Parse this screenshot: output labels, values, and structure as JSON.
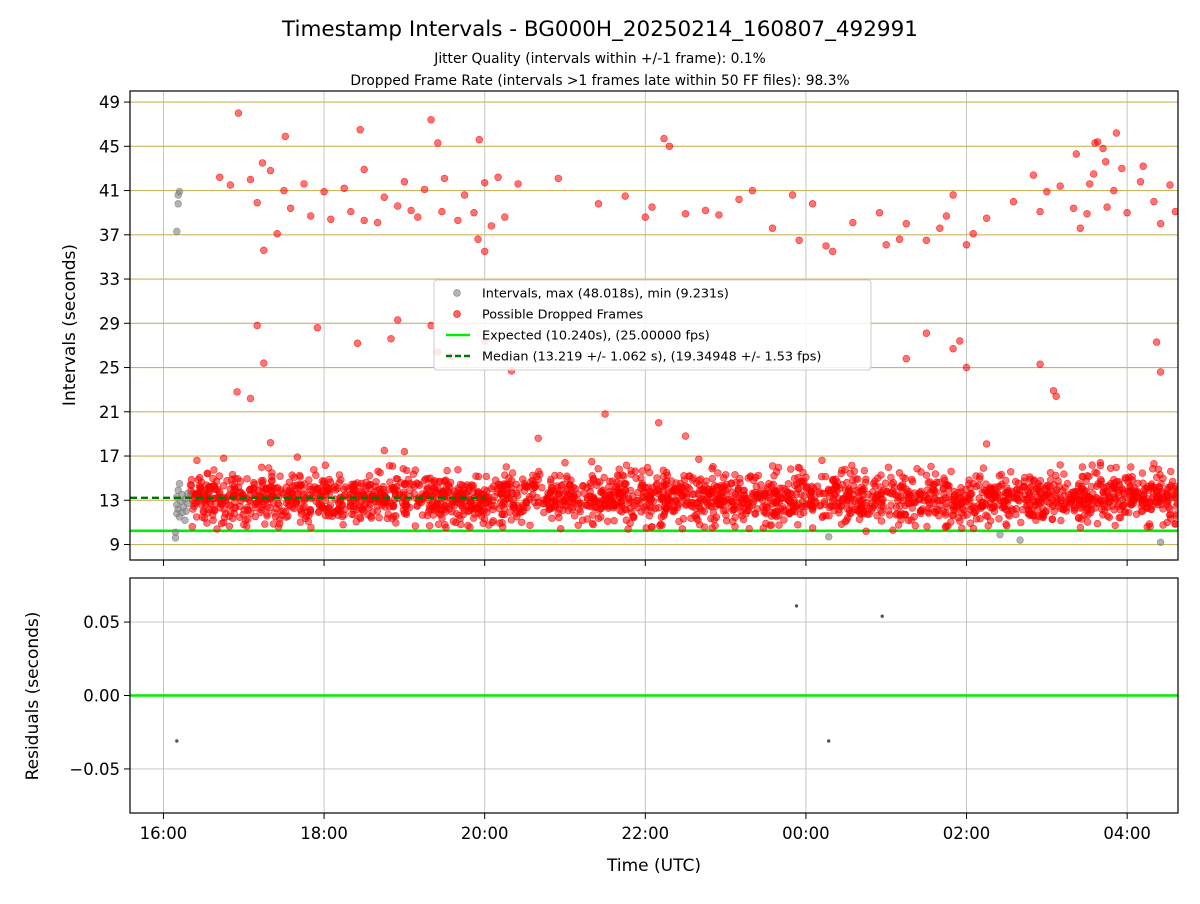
{
  "figure": {
    "title": "Timestamp Intervals - BG000H_20250214_160807_492991",
    "subtitle_1": "Jitter Quality (intervals within +/-1 frame): 0.1%",
    "subtitle_2": "Dropped Frame Rate (intervals >1 frames late within 50 FF files): 98.3%"
  },
  "colors": {
    "background": "#ffffff",
    "axes": "#000000",
    "grid": "#b0b0b0",
    "hgrid_top": "#c8b560",
    "intervals": "#808080",
    "dropped": "#ff0000",
    "expected": "#00ee00",
    "median": "#007700"
  },
  "chart_data": [
    {
      "type": "scatter",
      "panel": "intervals",
      "ylabel": "Intervals (seconds)",
      "xlabel": "",
      "xlim": [
        "15:35",
        "04:38"
      ],
      "ylim": [
        7.6,
        50.0
      ],
      "x_ticks": [
        "16:00",
        "18:00",
        "20:00",
        "22:00",
        "00:00",
        "02:00",
        "04:00"
      ],
      "y_ticks": [
        "9",
        "13",
        "17",
        "21",
        "25",
        "29",
        "33",
        "37",
        "41",
        "45",
        "49"
      ],
      "legend_position": "center",
      "legend": [
        {
          "label": "Intervals, max (48.018s), min (9.231s)",
          "kind": "marker",
          "color": "#808080"
        },
        {
          "label": "Possible Dropped Frames",
          "kind": "marker",
          "color": "#ff0000"
        },
        {
          "label": "Expected (10.240s), (25.00000 fps)",
          "kind": "line",
          "color": "#00ee00"
        },
        {
          "label": "Median (13.219 +/- 1.062 s), (19.34948 +/- 1.53 fps)",
          "kind": "dashed",
          "color": "#007700"
        }
      ],
      "expected": 10.24,
      "median": 13.219,
      "median_x_end": "20:00",
      "series": [
        {
          "name": "Intervals, max (48.018s), min (9.231s)",
          "points": [
            [
              "16:09",
              9.6
            ],
            [
              "16:09",
              10.1
            ],
            [
              "16:10",
              11.8
            ],
            [
              "16:10",
              12.6
            ],
            [
              "16:10",
              13.3
            ],
            [
              "16:11",
              13.9
            ],
            [
              "16:11",
              12.2
            ],
            [
              "16:12",
              14.5
            ],
            [
              "16:12",
              11.5
            ],
            [
              "16:13",
              12.9
            ],
            [
              "16:14",
              13.5
            ],
            [
              "16:14",
              11.9
            ],
            [
              "16:15",
              12.4
            ],
            [
              "16:16",
              13.1
            ],
            [
              "16:16",
              11.2
            ],
            [
              "16:17",
              12.0
            ],
            [
              "16:18",
              13.6
            ],
            [
              "16:18",
              12.7
            ],
            [
              "16:11",
              40.6
            ],
            [
              "16:12",
              40.9
            ],
            [
              "16:11",
              39.8
            ],
            [
              "16:10",
              37.3
            ],
            [
              "00:17",
              9.7
            ],
            [
              "02:25",
              9.9
            ],
            [
              "02:40",
              9.4
            ],
            [
              "04:25",
              9.2
            ]
          ]
        },
        {
          "name": "Possible Dropped Frames",
          "points": [
            [
              "16:56",
              48.0
            ],
            [
              "18:27",
              46.5
            ],
            [
              "17:31",
              45.9
            ],
            [
              "19:20",
              47.4
            ],
            [
              "19:25",
              45.3
            ],
            [
              "19:56",
              45.6
            ],
            [
              "22:14",
              45.7
            ],
            [
              "22:18",
              45.0
            ],
            [
              "03:36",
              45.3
            ],
            [
              "03:38",
              45.4
            ],
            [
              "03:52",
              46.2
            ],
            [
              "03:42",
              44.8
            ],
            [
              "03:22",
              44.3
            ],
            [
              "03:44",
              43.6
            ],
            [
              "03:56",
              43.0
            ],
            [
              "04:12",
              43.2
            ],
            [
              "03:32",
              41.6
            ],
            [
              "03:35",
              42.5
            ],
            [
              "17:14",
              43.5
            ],
            [
              "17:20",
              42.8
            ],
            [
              "17:05",
              42.0
            ],
            [
              "16:50",
              41.5
            ],
            [
              "16:42",
              42.2
            ],
            [
              "17:30",
              41.0
            ],
            [
              "17:45",
              41.6
            ],
            [
              "18:00",
              40.9
            ],
            [
              "18:15",
              41.2
            ],
            [
              "18:30",
              42.9
            ],
            [
              "18:45",
              40.4
            ],
            [
              "19:00",
              41.8
            ],
            [
              "19:15",
              41.1
            ],
            [
              "19:30",
              42.1
            ],
            [
              "19:45",
              40.6
            ],
            [
              "20:00",
              41.7
            ],
            [
              "20:10",
              42.2
            ],
            [
              "20:25",
              41.6
            ],
            [
              "17:10",
              39.9
            ],
            [
              "17:35",
              39.4
            ],
            [
              "17:50",
              38.7
            ],
            [
              "18:05",
              38.4
            ],
            [
              "18:20",
              39.1
            ],
            [
              "18:40",
              38.1
            ],
            [
              "18:55",
              39.6
            ],
            [
              "19:10",
              38.6
            ],
            [
              "19:28",
              39.1
            ],
            [
              "19:40",
              38.3
            ],
            [
              "19:52",
              39.0
            ],
            [
              "20:05",
              37.8
            ],
            [
              "20:15",
              38.6
            ],
            [
              "17:25",
              37.1
            ],
            [
              "17:15",
              35.6
            ],
            [
              "18:30",
              38.3
            ],
            [
              "19:05",
              39.2
            ],
            [
              "19:55",
              36.6
            ],
            [
              "20:00",
              35.5
            ],
            [
              "20:55",
              42.1
            ],
            [
              "21:25",
              39.8
            ],
            [
              "21:45",
              40.5
            ],
            [
              "22:00",
              38.6
            ],
            [
              "22:05",
              39.5
            ],
            [
              "22:30",
              38.9
            ],
            [
              "22:45",
              39.2
            ],
            [
              "22:55",
              38.8
            ],
            [
              "23:10",
              40.2
            ],
            [
              "23:20",
              41.0
            ],
            [
              "23:35",
              37.6
            ],
            [
              "23:50",
              40.6
            ],
            [
              "23:55",
              36.5
            ],
            [
              "00:05",
              39.8
            ],
            [
              "00:15",
              36.0
            ],
            [
              "00:20",
              35.5
            ],
            [
              "00:35",
              38.1
            ],
            [
              "00:55",
              39.0
            ],
            [
              "01:00",
              36.1
            ],
            [
              "01:10",
              36.6
            ],
            [
              "01:15",
              38.0
            ],
            [
              "01:30",
              36.5
            ],
            [
              "01:40",
              37.6
            ],
            [
              "01:45",
              38.7
            ],
            [
              "01:50",
              40.6
            ],
            [
              "02:00",
              36.1
            ],
            [
              "02:05",
              37.1
            ],
            [
              "02:15",
              38.5
            ],
            [
              "02:35",
              40.0
            ],
            [
              "02:50",
              42.4
            ],
            [
              "02:55",
              39.1
            ],
            [
              "03:00",
              40.9
            ],
            [
              "03:10",
              41.4
            ],
            [
              "03:20",
              39.4
            ],
            [
              "03:25",
              37.6
            ],
            [
              "03:30",
              38.9
            ],
            [
              "03:45",
              39.5
            ],
            [
              "03:50",
              41.0
            ],
            [
              "04:00",
              39.0
            ],
            [
              "04:10",
              41.8
            ],
            [
              "04:20",
              40.0
            ],
            [
              "04:25",
              38.0
            ],
            [
              "04:32",
              41.5
            ],
            [
              "04:36",
              39.1
            ],
            [
              "17:10",
              28.8
            ],
            [
              "17:55",
              28.6
            ],
            [
              "18:25",
              27.2
            ],
            [
              "18:50",
              27.6
            ],
            [
              "18:55",
              29.3
            ],
            [
              "19:20",
              28.8
            ],
            [
              "19:25",
              26.4
            ],
            [
              "19:35",
              26.0
            ],
            [
              "20:00",
              27.4
            ],
            [
              "01:30",
              28.1
            ],
            [
              "01:50",
              26.7
            ],
            [
              "01:55",
              27.4
            ],
            [
              "02:00",
              25.0
            ],
            [
              "01:15",
              25.8
            ],
            [
              "02:55",
              25.3
            ],
            [
              "03:05",
              22.9
            ],
            [
              "03:07",
              22.4
            ],
            [
              "04:22",
              27.3
            ],
            [
              "04:25",
              24.6
            ],
            [
              "16:55",
              22.8
            ],
            [
              "17:05",
              22.2
            ],
            [
              "17:15",
              25.4
            ],
            [
              "20:20",
              24.7
            ],
            [
              "21:30",
              20.8
            ],
            [
              "22:10",
              20.0
            ],
            [
              "17:20",
              18.2
            ],
            [
              "20:40",
              18.6
            ],
            [
              "02:15",
              18.1
            ],
            [
              "22:30",
              18.8
            ],
            [
              "19:00",
              17.4
            ],
            [
              "18:45",
              17.5
            ],
            [
              "17:40",
              16.9
            ],
            [
              "16:45",
              16.8
            ],
            [
              "22:40",
              16.7
            ],
            [
              "21:00",
              16.4
            ],
            [
              "21:20",
              16.5
            ],
            [
              "16:25",
              16.6
            ],
            [
              "04:20",
              16.3
            ],
            [
              "00:12",
              16.6
            ],
            [
              "03:10",
              16.2
            ],
            [
              "03:40",
              16.4
            ],
            [
              "16:40",
              10.4
            ],
            [
              "16:45",
              11.0
            ],
            [
              "17:00",
              10.8
            ],
            [
              "20:00",
              11.3
            ],
            [
              "22:05",
              10.6
            ],
            [
              "22:50",
              10.5
            ],
            [
              "23:30",
              10.9
            ],
            [
              "00:05",
              10.5
            ],
            [
              "00:45",
              10.2
            ],
            [
              "01:05",
              10.3
            ],
            [
              "01:55",
              11.1
            ],
            [
              "02:30",
              10.7
            ],
            [
              "04:15",
              10.6
            ],
            [
              "04:30",
              11.0
            ]
          ]
        }
      ],
      "band": {
        "name": "Possible Dropped Frames",
        "x_start": "16:20",
        "x_end": "04:38",
        "count": 2400,
        "center": 13.2,
        "spread": 1.05,
        "tail_spread": 1.9,
        "tail_fraction": 0.12
      }
    },
    {
      "type": "scatter",
      "panel": "residuals",
      "ylabel": "Residuals (seconds)",
      "xlabel": "Time (UTC)",
      "xlim": [
        "15:35",
        "04:38"
      ],
      "ylim": [
        -0.08,
        0.08
      ],
      "x_ticks": [
        "16:00",
        "18:00",
        "20:00",
        "22:00",
        "00:00",
        "02:00",
        "04:00"
      ],
      "y_ticks": [
        "0.05",
        "0.00",
        "−0.05"
      ],
      "y_tick_values": [
        0.05,
        0.0,
        -0.05
      ],
      "zero_line": 0.0,
      "points": [
        [
          "16:10",
          -0.031
        ],
        [
          "23:53",
          0.061
        ],
        [
          "00:17",
          -0.031
        ],
        [
          "00:57",
          0.054
        ]
      ]
    }
  ]
}
